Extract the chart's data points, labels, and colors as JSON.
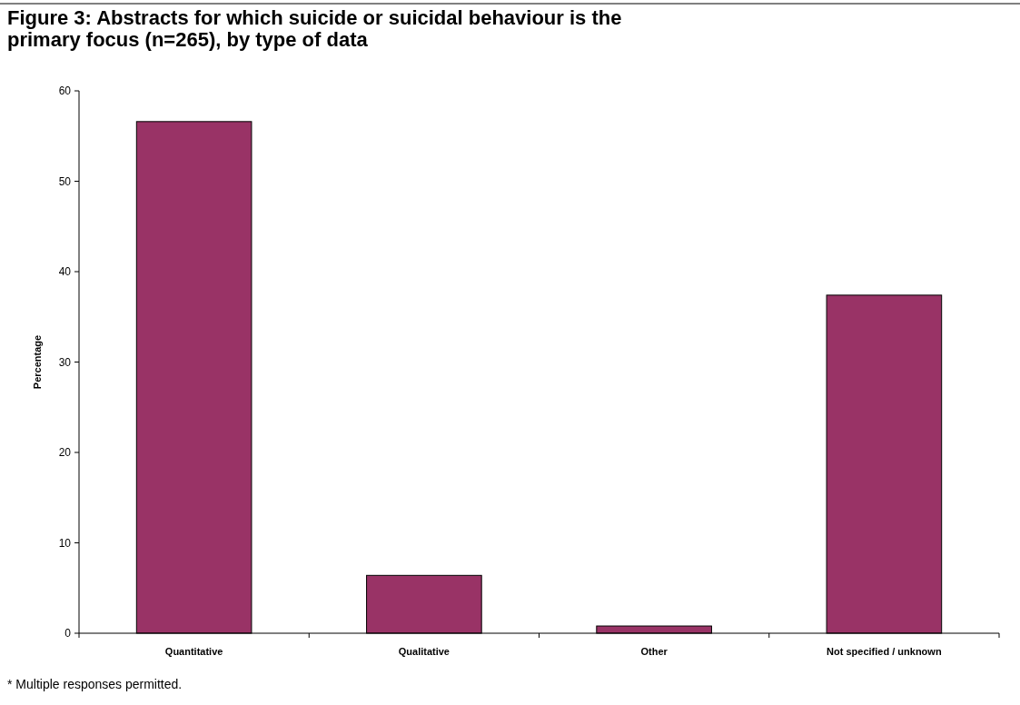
{
  "chart_data": {
    "type": "bar",
    "title": "Figure 3: Abstracts for which suicide or suicidal behaviour is the primary focus (n=265), by type of data",
    "categories": [
      "Quantitative",
      "Qualitative",
      "Other",
      "Not specified / unknown"
    ],
    "values": [
      56.6,
      6.4,
      0.8,
      37.4
    ],
    "color": "#993366",
    "ylabel": "Percentage",
    "ylim": [
      0,
      60
    ],
    "yticks": [
      0,
      10,
      20,
      30,
      40,
      50,
      60
    ],
    "grid": false,
    "annotations": [
      "* Multiple responses permitted."
    ]
  }
}
